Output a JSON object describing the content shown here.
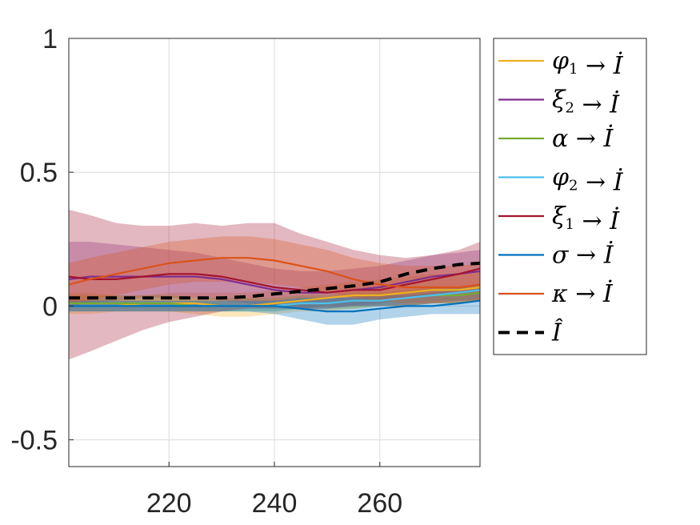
{
  "chart_data": {
    "type": "line",
    "title": "",
    "xlabel": "",
    "ylabel": "",
    "xlim": [
      201,
      279
    ],
    "ylim": [
      -0.6,
      1
    ],
    "xticks": [
      220,
      240,
      260
    ],
    "xtick_labels": [
      "220",
      "240",
      "260"
    ],
    "yticks": [
      -0.5,
      0,
      0.5,
      1
    ],
    "ytick_labels": [
      "-0.5",
      "0",
      "0.5",
      "1"
    ],
    "grid": true,
    "legend_position": "right-outside",
    "x": [
      201,
      205,
      210,
      215,
      220,
      225,
      230,
      235,
      240,
      245,
      250,
      255,
      260,
      265,
      270,
      275,
      279
    ],
    "series": [
      {
        "symbol": "φ",
        "sub": "1",
        "arrow": "→",
        "target": "İ",
        "color": "#EDB120",
        "dashed": false,
        "values": [
          0.0,
          0.0,
          0.0,
          0.01,
          0.01,
          0.01,
          0.0,
          0.0,
          0.01,
          0.02,
          0.03,
          0.04,
          0.04,
          0.05,
          0.06,
          0.06,
          0.07
        ],
        "lower": [
          -0.03,
          -0.03,
          -0.02,
          -0.02,
          -0.02,
          -0.03,
          -0.04,
          -0.04,
          -0.03,
          -0.02,
          -0.02,
          -0.01,
          0.0,
          0.0,
          0.01,
          0.01,
          0.02
        ],
        "upper": [
          0.05,
          0.05,
          0.04,
          0.04,
          0.05,
          0.05,
          0.05,
          0.05,
          0.06,
          0.07,
          0.08,
          0.09,
          0.1,
          0.11,
          0.12,
          0.12,
          0.13
        ]
      },
      {
        "symbol": "ξ",
        "sub": "2",
        "arrow": "→",
        "target": "İ",
        "color": "#7E2F8E",
        "dashed": false,
        "values": [
          0.1,
          0.11,
          0.11,
          0.11,
          0.11,
          0.11,
          0.1,
          0.08,
          0.06,
          0.05,
          0.05,
          0.06,
          0.07,
          0.09,
          0.11,
          0.12,
          0.13
        ],
        "lower": [
          0.0,
          0.01,
          0.02,
          0.03,
          0.03,
          0.03,
          0.02,
          0.01,
          0.0,
          -0.01,
          0.0,
          0.0,
          0.01,
          0.03,
          0.04,
          0.05,
          0.06
        ],
        "upper": [
          0.24,
          0.24,
          0.23,
          0.22,
          0.21,
          0.2,
          0.18,
          0.16,
          0.14,
          0.13,
          0.13,
          0.14,
          0.15,
          0.17,
          0.19,
          0.2,
          0.21
        ]
      },
      {
        "symbol": "α",
        "sub": "",
        "arrow": "→",
        "target": "İ",
        "color": "#77AC30",
        "dashed": false,
        "values": [
          0.01,
          0.01,
          0.01,
          0.01,
          0.01,
          0.0,
          0.0,
          0.0,
          0.0,
          0.01,
          0.01,
          0.02,
          0.02,
          0.03,
          0.04,
          0.04,
          0.05
        ],
        "lower": [
          -0.02,
          -0.02,
          -0.02,
          -0.02,
          -0.02,
          -0.02,
          -0.02,
          -0.02,
          -0.02,
          -0.01,
          -0.01,
          -0.01,
          0.0,
          0.0,
          0.01,
          0.01,
          0.02
        ],
        "upper": [
          0.04,
          0.04,
          0.04,
          0.04,
          0.04,
          0.03,
          0.03,
          0.03,
          0.03,
          0.04,
          0.04,
          0.05,
          0.05,
          0.06,
          0.07,
          0.07,
          0.08
        ]
      },
      {
        "symbol": "φ",
        "sub": "2",
        "arrow": "→",
        "target": "İ",
        "color": "#4DBEEE",
        "dashed": false,
        "values": [
          0.0,
          0.0,
          0.0,
          0.0,
          0.0,
          0.0,
          0.0,
          0.0,
          0.0,
          0.01,
          0.01,
          0.02,
          0.02,
          0.03,
          0.04,
          0.05,
          0.06
        ],
        "lower": [
          -0.02,
          -0.02,
          -0.02,
          -0.02,
          -0.02,
          -0.02,
          -0.02,
          -0.02,
          -0.02,
          -0.01,
          -0.01,
          0.0,
          0.0,
          0.01,
          0.02,
          0.02,
          0.03
        ],
        "upper": [
          0.02,
          0.02,
          0.02,
          0.02,
          0.02,
          0.02,
          0.02,
          0.02,
          0.02,
          0.03,
          0.03,
          0.04,
          0.04,
          0.05,
          0.06,
          0.07,
          0.08
        ]
      },
      {
        "symbol": "ξ",
        "sub": "1",
        "arrow": "→",
        "target": "İ",
        "color": "#A2142F",
        "dashed": false,
        "values": [
          0.11,
          0.1,
          0.1,
          0.11,
          0.12,
          0.12,
          0.11,
          0.09,
          0.07,
          0.06,
          0.05,
          0.06,
          0.06,
          0.08,
          0.1,
          0.12,
          0.14
        ],
        "lower": [
          -0.2,
          -0.17,
          -0.13,
          -0.09,
          -0.06,
          -0.04,
          -0.02,
          -0.01,
          -0.01,
          -0.01,
          -0.01,
          0.0,
          0.0,
          0.0,
          0.01,
          0.02,
          0.02
        ],
        "upper": [
          0.36,
          0.34,
          0.31,
          0.3,
          0.3,
          0.31,
          0.3,
          0.31,
          0.31,
          0.27,
          0.24,
          0.21,
          0.19,
          0.18,
          0.19,
          0.21,
          0.24
        ]
      },
      {
        "symbol": "σ",
        "sub": "",
        "arrow": "→",
        "target": "İ",
        "color": "#0072BD",
        "dashed": false,
        "values": [
          0.0,
          0.0,
          0.0,
          0.0,
          0.0,
          0.0,
          0.0,
          0.0,
          0.0,
          -0.01,
          -0.02,
          -0.02,
          -0.01,
          0.0,
          0.0,
          0.01,
          0.02
        ],
        "lower": [
          -0.02,
          -0.02,
          -0.02,
          -0.02,
          -0.02,
          -0.02,
          -0.02,
          -0.02,
          -0.03,
          -0.05,
          -0.07,
          -0.07,
          -0.05,
          -0.04,
          -0.03,
          -0.03,
          -0.03
        ],
        "upper": [
          0.02,
          0.02,
          0.02,
          0.02,
          0.02,
          0.02,
          0.02,
          0.02,
          0.02,
          0.03,
          0.03,
          0.03,
          0.04,
          0.04,
          0.05,
          0.06,
          0.07
        ]
      },
      {
        "symbol": "κ",
        "sub": "",
        "arrow": "→",
        "target": "İ",
        "color": "#D95319",
        "dashed": false,
        "values": [
          0.08,
          0.1,
          0.12,
          0.14,
          0.16,
          0.17,
          0.18,
          0.18,
          0.17,
          0.15,
          0.13,
          0.1,
          0.08,
          0.07,
          0.07,
          0.07,
          0.08
        ],
        "lower": [
          0.01,
          0.02,
          0.04,
          0.06,
          0.08,
          0.09,
          0.09,
          0.09,
          0.08,
          0.07,
          0.05,
          0.03,
          0.02,
          0.01,
          0.01,
          0.01,
          0.02
        ],
        "upper": [
          0.16,
          0.18,
          0.2,
          0.22,
          0.24,
          0.25,
          0.26,
          0.26,
          0.25,
          0.23,
          0.21,
          0.18,
          0.16,
          0.15,
          0.15,
          0.15,
          0.16
        ]
      },
      {
        "symbol": "Î",
        "sub": "",
        "arrow": "",
        "target": "",
        "color": "#000000",
        "dashed": true,
        "values": [
          0.03,
          0.03,
          0.03,
          0.03,
          0.03,
          0.03,
          0.03,
          0.035,
          0.045,
          0.055,
          0.065,
          0.075,
          0.09,
          0.12,
          0.14,
          0.155,
          0.16
        ],
        "lower": null,
        "upper": null
      }
    ]
  }
}
